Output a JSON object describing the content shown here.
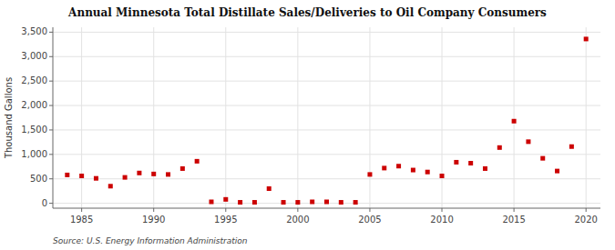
{
  "chart_data": {
    "type": "scatter",
    "title": "Annual Minnesota Total Distillate Sales/Deliveries to Oil Company Consumers",
    "ylabel": "Thousand Gallons",
    "source": "Source: U.S. Energy Information Administration",
    "color": "#CC0000",
    "marker": "square",
    "grid": true,
    "xlim": [
      1983,
      2021
    ],
    "ylim": [
      -100,
      3600
    ],
    "xticks": [
      1985,
      1990,
      1995,
      2000,
      2005,
      2010,
      2015,
      2020
    ],
    "yticks": [
      0,
      500,
      {
        "value": 1000,
        "label": "1,000"
      },
      {
        "value": 1500,
        "label": "1,500"
      },
      {
        "value": 2000,
        "label": "2,000"
      },
      {
        "value": 2500,
        "label": "2,500"
      },
      {
        "value": 3000,
        "label": "3,000"
      },
      {
        "value": 3500,
        "label": "3,500"
      }
    ],
    "x": [
      1984,
      1985,
      1986,
      1987,
      1988,
      1989,
      1990,
      1991,
      1992,
      1993,
      1994,
      1995,
      1996,
      1997,
      1998,
      1999,
      2000,
      2001,
      2002,
      2003,
      2004,
      2005,
      2006,
      2007,
      2008,
      2009,
      2010,
      2011,
      2012,
      2013,
      2014,
      2015,
      2016,
      2017,
      2018,
      2019,
      2020
    ],
    "values": [
      580,
      560,
      510,
      350,
      530,
      620,
      600,
      590,
      710,
      860,
      30,
      80,
      20,
      20,
      300,
      20,
      20,
      30,
      30,
      20,
      20,
      590,
      720,
      760,
      680,
      640,
      560,
      840,
      820,
      710,
      1140,
      1680,
      1260,
      920,
      660,
      1160,
      3360
    ]
  }
}
